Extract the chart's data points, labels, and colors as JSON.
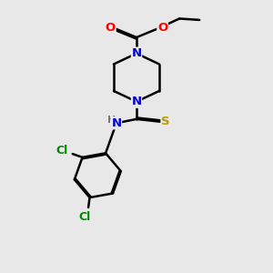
{
  "bg_color": "#e8e8e8",
  "atom_colors": {
    "C": "#000000",
    "N": "#0000cc",
    "O": "#ff0000",
    "S": "#bb9900",
    "Cl": "#008800",
    "H": "#777777"
  },
  "bond_color": "#000000",
  "bond_width": 1.8,
  "figsize": [
    3.0,
    3.0
  ],
  "dpi": 100
}
